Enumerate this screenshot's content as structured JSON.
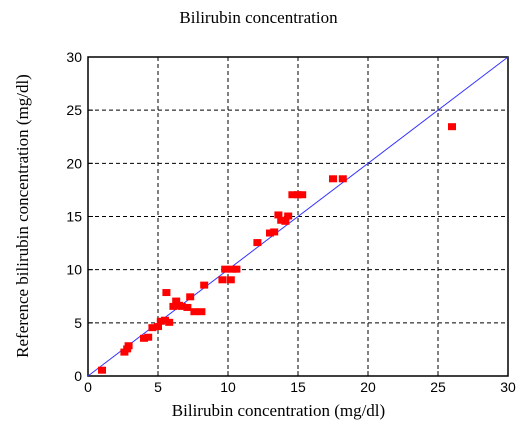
{
  "chart_data": {
    "type": "scatter",
    "title": "Bilirubin concentration",
    "xlabel": "Bilirubin concentration (mg/dl)",
    "ylabel": "Reference bilirubin concentration (mg/dl)",
    "xlim": [
      0,
      30
    ],
    "ylim": [
      0,
      30
    ],
    "xticks": [
      0,
      5,
      10,
      15,
      20,
      25,
      30
    ],
    "yticks": [
      0,
      5,
      10,
      15,
      20,
      25,
      30
    ],
    "grid": true,
    "point_color": "#ff0000",
    "reference_line": {
      "from": [
        0,
        0
      ],
      "to": [
        30,
        30
      ],
      "color": "#3333ff"
    },
    "points": [
      [
        1.0,
        0.5
      ],
      [
        2.6,
        2.2
      ],
      [
        2.8,
        2.5
      ],
      [
        2.9,
        2.8
      ],
      [
        4.0,
        3.5
      ],
      [
        4.3,
        3.6
      ],
      [
        4.6,
        4.5
      ],
      [
        5.0,
        4.6
      ],
      [
        5.2,
        5.1
      ],
      [
        5.5,
        5.2
      ],
      [
        5.8,
        5.0
      ],
      [
        5.6,
        7.8
      ],
      [
        6.1,
        6.5
      ],
      [
        6.3,
        7.0
      ],
      [
        6.5,
        6.6
      ],
      [
        6.7,
        6.5
      ],
      [
        7.1,
        6.4
      ],
      [
        7.3,
        7.4
      ],
      [
        7.6,
        6.0
      ],
      [
        8.1,
        6.0
      ],
      [
        8.3,
        8.5
      ],
      [
        9.6,
        9.0
      ],
      [
        9.8,
        10.0
      ],
      [
        10.2,
        9.0
      ],
      [
        10.3,
        10.0
      ],
      [
        10.6,
        10.0
      ],
      [
        12.1,
        12.5
      ],
      [
        13.0,
        13.4
      ],
      [
        13.3,
        13.5
      ],
      [
        13.6,
        15.1
      ],
      [
        13.8,
        14.6
      ],
      [
        14.1,
        14.5
      ],
      [
        14.3,
        15.0
      ],
      [
        14.6,
        17.0
      ],
      [
        15.0,
        17.0
      ],
      [
        15.3,
        17.0
      ],
      [
        17.5,
        18.5
      ],
      [
        18.2,
        18.5
      ],
      [
        26.0,
        23.4
      ]
    ]
  }
}
